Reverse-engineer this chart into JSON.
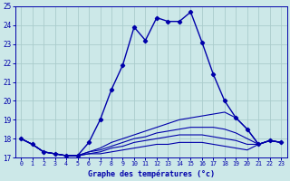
{
  "xlabel": "Graphe des températures (°c)",
  "background_color": "#cce8e8",
  "grid_color": "#aacccc",
  "line_color": "#0000aa",
  "xlim": [
    -0.5,
    23.5
  ],
  "ylim": [
    17,
    25
  ],
  "xticks": [
    0,
    1,
    2,
    3,
    4,
    5,
    6,
    7,
    8,
    9,
    10,
    11,
    12,
    13,
    14,
    15,
    16,
    17,
    18,
    19,
    20,
    21,
    22,
    23
  ],
  "yticks": [
    17,
    18,
    19,
    20,
    21,
    22,
    23,
    24,
    25
  ],
  "series_main": {
    "x": [
      0,
      1,
      2,
      3,
      4,
      5,
      6,
      7,
      8,
      9,
      10,
      11,
      12,
      13,
      14,
      15,
      16,
      17,
      18,
      19,
      20,
      21,
      22,
      23
    ],
    "y": [
      18.0,
      17.7,
      17.3,
      17.2,
      17.1,
      17.1,
      17.8,
      19.0,
      20.6,
      21.9,
      23.9,
      23.2,
      24.4,
      24.2,
      24.2,
      24.7,
      23.1,
      21.4,
      20.0,
      19.1,
      18.5,
      17.7,
      17.9,
      17.8
    ]
  },
  "series_secondary": [
    {
      "x": [
        0,
        1,
        2,
        3,
        4,
        5,
        6,
        7,
        8,
        9,
        10,
        11,
        12,
        13,
        14,
        15,
        16,
        17,
        18,
        19,
        20,
        21,
        22,
        23
      ],
      "y": [
        18.0,
        17.7,
        17.3,
        17.2,
        17.1,
        17.1,
        17.3,
        17.5,
        17.8,
        18.0,
        18.2,
        18.4,
        18.6,
        18.8,
        19.0,
        19.1,
        19.2,
        19.3,
        19.4,
        19.1,
        18.5,
        17.7,
        17.9,
        17.8
      ]
    },
    {
      "x": [
        0,
        1,
        2,
        3,
        4,
        5,
        6,
        7,
        8,
        9,
        10,
        11,
        12,
        13,
        14,
        15,
        16,
        17,
        18,
        19,
        20,
        21,
        22,
        23
      ],
      "y": [
        18.0,
        17.7,
        17.3,
        17.2,
        17.1,
        17.1,
        17.3,
        17.4,
        17.6,
        17.8,
        18.0,
        18.1,
        18.3,
        18.4,
        18.5,
        18.6,
        18.6,
        18.6,
        18.5,
        18.3,
        18.0,
        17.7,
        17.9,
        17.8
      ]
    },
    {
      "x": [
        0,
        1,
        2,
        3,
        4,
        5,
        6,
        7,
        8,
        9,
        10,
        11,
        12,
        13,
        14,
        15,
        16,
        17,
        18,
        19,
        20,
        21,
        22,
        23
      ],
      "y": [
        18.0,
        17.7,
        17.3,
        17.2,
        17.1,
        17.1,
        17.2,
        17.3,
        17.5,
        17.6,
        17.8,
        17.9,
        18.0,
        18.1,
        18.2,
        18.2,
        18.2,
        18.1,
        18.0,
        17.9,
        17.7,
        17.7,
        17.9,
        17.8
      ]
    },
    {
      "x": [
        0,
        1,
        2,
        3,
        4,
        5,
        6,
        7,
        8,
        9,
        10,
        11,
        12,
        13,
        14,
        15,
        16,
        17,
        18,
        19,
        20,
        21,
        22,
        23
      ],
      "y": [
        18.0,
        17.7,
        17.3,
        17.2,
        17.1,
        17.1,
        17.2,
        17.2,
        17.3,
        17.4,
        17.5,
        17.6,
        17.7,
        17.7,
        17.8,
        17.8,
        17.8,
        17.7,
        17.6,
        17.5,
        17.4,
        17.7,
        17.9,
        17.8
      ]
    }
  ]
}
